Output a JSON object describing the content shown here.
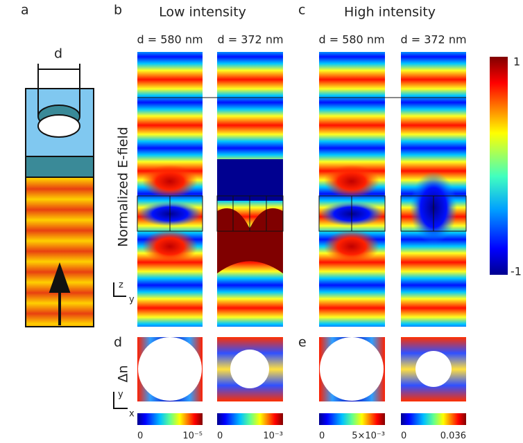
{
  "panel_a": {
    "label": "a",
    "dimension": "d"
  },
  "panel_b": {
    "label": "b",
    "title": "Low intensity",
    "left": "d = 580 nm",
    "right": "d = 372 nm"
  },
  "panel_c": {
    "label": "c",
    "title": "High intensity",
    "left": "d = 580 nm",
    "right": "d = 372 nm"
  },
  "panel_d": {
    "label": "d"
  },
  "panel_e": {
    "label": "e"
  },
  "field_axis_label": "Normalized E-field",
  "index_axis_label": "Δn",
  "colorbar": {
    "max": "1",
    "min": "-1"
  },
  "coords_top": {
    "vertical": "z",
    "horizontal": "y"
  },
  "coords_bottom": {
    "vertical": "y",
    "horizontal": "x"
  },
  "small_colorbars": [
    {
      "min": "0",
      "max": "10⁻⁵"
    },
    {
      "min": "0",
      "max": "10⁻³"
    },
    {
      "min": "0",
      "max": "5×10⁻³"
    },
    {
      "min": "0",
      "max": "0.036"
    }
  ]
}
